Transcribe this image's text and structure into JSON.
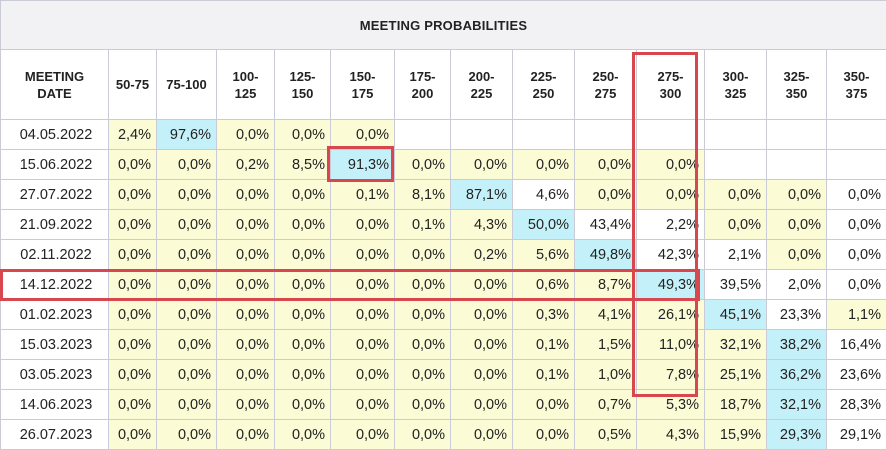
{
  "title": "MEETING PROBABILITIES",
  "columns": [
    "MEETING DATE",
    "50-75",
    "75-100",
    "100-125",
    "125-150",
    "150-175",
    "175-200",
    "200-225",
    "225-250",
    "250-275",
    "275-300",
    "300-325",
    "325-350",
    "350-375"
  ],
  "column_lines": [
    [
      "MEETING",
      "DATE"
    ],
    [
      "50-75"
    ],
    [
      "75-100"
    ],
    [
      "100-",
      "125"
    ],
    [
      "125-",
      "150"
    ],
    [
      "150-",
      "175"
    ],
    [
      "175-",
      "200"
    ],
    [
      "200-",
      "225"
    ],
    [
      "225-",
      "250"
    ],
    [
      "250-",
      "275"
    ],
    [
      "275-",
      "300"
    ],
    [
      "300-",
      "325"
    ],
    [
      "325-",
      "350"
    ],
    [
      "350-",
      "375"
    ]
  ],
  "rows": [
    {
      "date": "04.05.2022",
      "values": [
        "2,4%",
        "97,6%",
        "0,0%",
        "0,0%",
        "0,0%",
        "",
        "",
        "",
        "",
        "",
        "",
        "",
        ""
      ]
    },
    {
      "date": "15.06.2022",
      "values": [
        "0,0%",
        "0,0%",
        "0,2%",
        "8,5%",
        "91,3%",
        "0,0%",
        "0,0%",
        "0,0%",
        "0,0%",
        "0,0%",
        "",
        "",
        ""
      ]
    },
    {
      "date": "27.07.2022",
      "values": [
        "0,0%",
        "0,0%",
        "0,0%",
        "0,0%",
        "0,1%",
        "8,1%",
        "87,1%",
        "4,6%",
        "0,0%",
        "0,0%",
        "0,0%",
        "0,0%",
        "0,0%"
      ]
    },
    {
      "date": "21.09.2022",
      "values": [
        "0,0%",
        "0,0%",
        "0,0%",
        "0,0%",
        "0,0%",
        "0,1%",
        "4,3%",
        "50,0%",
        "43,4%",
        "2,2%",
        "0,0%",
        "0,0%",
        "0,0%"
      ]
    },
    {
      "date": "02.11.2022",
      "values": [
        "0,0%",
        "0,0%",
        "0,0%",
        "0,0%",
        "0,0%",
        "0,0%",
        "0,2%",
        "5,6%",
        "49,8%",
        "42,3%",
        "2,1%",
        "0,0%",
        "0,0%"
      ]
    },
    {
      "date": "14.12.2022",
      "values": [
        "0,0%",
        "0,0%",
        "0,0%",
        "0,0%",
        "0,0%",
        "0,0%",
        "0,0%",
        "0,6%",
        "8,7%",
        "49,3%",
        "39,5%",
        "2,0%",
        "0,0%"
      ]
    },
    {
      "date": "01.02.2023",
      "values": [
        "0,0%",
        "0,0%",
        "0,0%",
        "0,0%",
        "0,0%",
        "0,0%",
        "0,0%",
        "0,3%",
        "4,1%",
        "26,1%",
        "45,1%",
        "23,3%",
        "1,1%"
      ]
    },
    {
      "date": "15.03.2023",
      "values": [
        "0,0%",
        "0,0%",
        "0,0%",
        "0,0%",
        "0,0%",
        "0,0%",
        "0,0%",
        "0,1%",
        "1,5%",
        "11,0%",
        "32,1%",
        "38,2%",
        "16,4%"
      ]
    },
    {
      "date": "03.05.2023",
      "values": [
        "0,0%",
        "0,0%",
        "0,0%",
        "0,0%",
        "0,0%",
        "0,0%",
        "0,0%",
        "0,1%",
        "1,0%",
        "7,8%",
        "25,1%",
        "36,2%",
        "23,6%"
      ]
    },
    {
      "date": "14.06.2023",
      "values": [
        "0,0%",
        "0,0%",
        "0,0%",
        "0,0%",
        "0,0%",
        "0,0%",
        "0,0%",
        "0,0%",
        "0,7%",
        "5,3%",
        "18,7%",
        "32,1%",
        "28,3%"
      ]
    },
    {
      "date": "26.07.2023",
      "values": [
        "0,0%",
        "0,0%",
        "0,0%",
        "0,0%",
        "0,0%",
        "0,0%",
        "0,0%",
        "0,0%",
        "0,5%",
        "4,3%",
        "15,9%",
        "29,3%",
        "29,1%"
      ]
    }
  ],
  "colors": {
    "yellow_cell": "#fbfbd6",
    "max_cell": "#c4f1f9",
    "highlight_border": "#d9474e",
    "grid": "#c9cbd6"
  }
}
